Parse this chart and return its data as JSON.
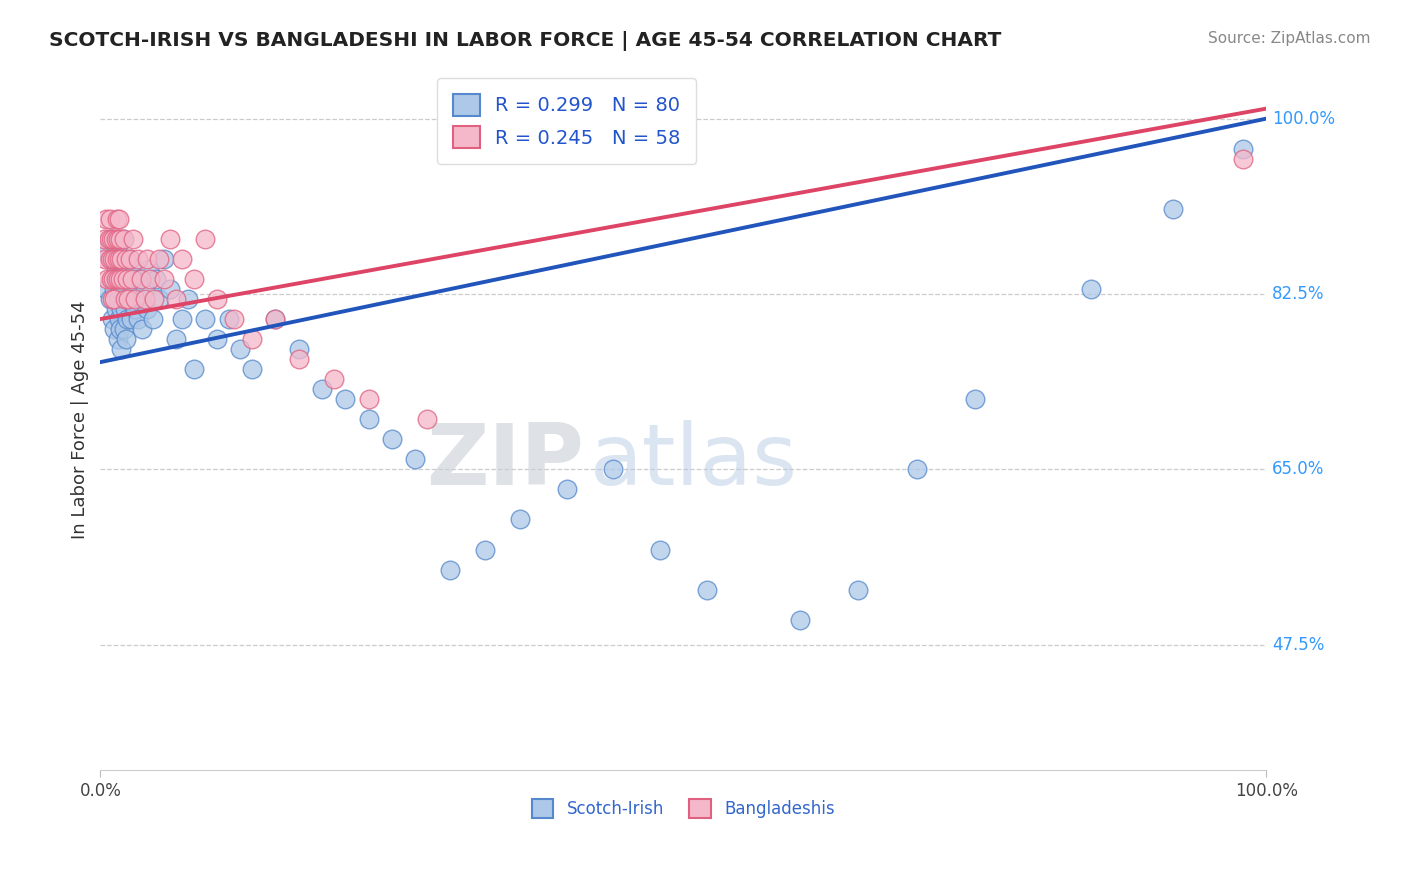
{
  "title": "SCOTCH-IRISH VS BANGLADESHI IN LABOR FORCE | AGE 45-54 CORRELATION CHART",
  "source": "Source: ZipAtlas.com",
  "ylabel": "In Labor Force | Age 45-54",
  "ytick_labels": [
    "100.0%",
    "82.5%",
    "65.0%",
    "47.5%"
  ],
  "ytick_values": [
    1.0,
    0.825,
    0.65,
    0.475
  ],
  "xmin": 0.0,
  "xmax": 1.0,
  "ymin": 0.35,
  "ymax": 1.05,
  "blue_color": "#adc8e8",
  "pink_color": "#f5b8ca",
  "blue_edge": "#5588cc",
  "pink_edge": "#e06080",
  "blue_line": "#2255bb",
  "pink_line": "#dd4466",
  "watermark_zip": "ZIP",
  "watermark_atlas": "atlas",
  "R_blue": "0.299",
  "N_blue": "80",
  "R_pink": "0.245",
  "N_pink": "58",
  "scotch_x": [
    0.005,
    0.005,
    0.008,
    0.008,
    0.01,
    0.01,
    0.01,
    0.012,
    0.012,
    0.013,
    0.013,
    0.014,
    0.015,
    0.015,
    0.015,
    0.016,
    0.016,
    0.017,
    0.017,
    0.018,
    0.018,
    0.019,
    0.019,
    0.02,
    0.02,
    0.021,
    0.021,
    0.022,
    0.022,
    0.023,
    0.023,
    0.025,
    0.025,
    0.026,
    0.027,
    0.028,
    0.03,
    0.03,
    0.032,
    0.033,
    0.035,
    0.036,
    0.038,
    0.04,
    0.042,
    0.045,
    0.048,
    0.05,
    0.055,
    0.06,
    0.065,
    0.07,
    0.075,
    0.08,
    0.09,
    0.1,
    0.11,
    0.12,
    0.13,
    0.15,
    0.17,
    0.19,
    0.21,
    0.23,
    0.25,
    0.27,
    0.3,
    0.33,
    0.36,
    0.4,
    0.44,
    0.48,
    0.52,
    0.6,
    0.65,
    0.7,
    0.75,
    0.85,
    0.92,
    0.98
  ],
  "scotch_y": [
    0.83,
    0.87,
    0.82,
    0.86,
    0.8,
    0.84,
    0.88,
    0.79,
    0.83,
    0.81,
    0.85,
    0.87,
    0.78,
    0.82,
    0.86,
    0.8,
    0.84,
    0.79,
    0.83,
    0.77,
    0.81,
    0.85,
    0.88,
    0.79,
    0.83,
    0.81,
    0.85,
    0.78,
    0.82,
    0.8,
    0.84,
    0.82,
    0.86,
    0.8,
    0.84,
    0.83,
    0.81,
    0.85,
    0.8,
    0.84,
    0.82,
    0.79,
    0.83,
    0.81,
    0.85,
    0.8,
    0.84,
    0.82,
    0.86,
    0.83,
    0.78,
    0.8,
    0.82,
    0.75,
    0.8,
    0.78,
    0.8,
    0.77,
    0.75,
    0.8,
    0.77,
    0.73,
    0.72,
    0.7,
    0.68,
    0.66,
    0.55,
    0.57,
    0.6,
    0.63,
    0.65,
    0.57,
    0.53,
    0.5,
    0.53,
    0.65,
    0.72,
    0.83,
    0.91,
    0.97
  ],
  "bang_x": [
    0.003,
    0.004,
    0.005,
    0.006,
    0.007,
    0.008,
    0.008,
    0.009,
    0.009,
    0.01,
    0.01,
    0.011,
    0.011,
    0.012,
    0.012,
    0.013,
    0.013,
    0.014,
    0.014,
    0.015,
    0.015,
    0.016,
    0.016,
    0.017,
    0.017,
    0.018,
    0.019,
    0.02,
    0.021,
    0.022,
    0.023,
    0.024,
    0.025,
    0.027,
    0.028,
    0.03,
    0.032,
    0.035,
    0.038,
    0.04,
    0.043,
    0.046,
    0.05,
    0.055,
    0.06,
    0.065,
    0.07,
    0.08,
    0.09,
    0.1,
    0.115,
    0.13,
    0.15,
    0.17,
    0.2,
    0.23,
    0.28,
    0.98
  ],
  "bang_y": [
    0.88,
    0.86,
    0.9,
    0.84,
    0.88,
    0.86,
    0.9,
    0.84,
    0.88,
    0.82,
    0.86,
    0.84,
    0.88,
    0.82,
    0.86,
    0.84,
    0.88,
    0.86,
    0.9,
    0.84,
    0.88,
    0.86,
    0.9,
    0.84,
    0.88,
    0.86,
    0.84,
    0.88,
    0.82,
    0.86,
    0.84,
    0.82,
    0.86,
    0.84,
    0.88,
    0.82,
    0.86,
    0.84,
    0.82,
    0.86,
    0.84,
    0.82,
    0.86,
    0.84,
    0.88,
    0.82,
    0.86,
    0.84,
    0.88,
    0.82,
    0.8,
    0.78,
    0.8,
    0.76,
    0.74,
    0.72,
    0.7,
    0.96
  ],
  "blue_line_x0": 0.0,
  "blue_line_y0": 0.757,
  "blue_line_x1": 1.0,
  "blue_line_y1": 1.0,
  "pink_line_x0": 0.0,
  "pink_line_y0": 0.8,
  "pink_line_x1": 1.0,
  "pink_line_y1": 1.01
}
